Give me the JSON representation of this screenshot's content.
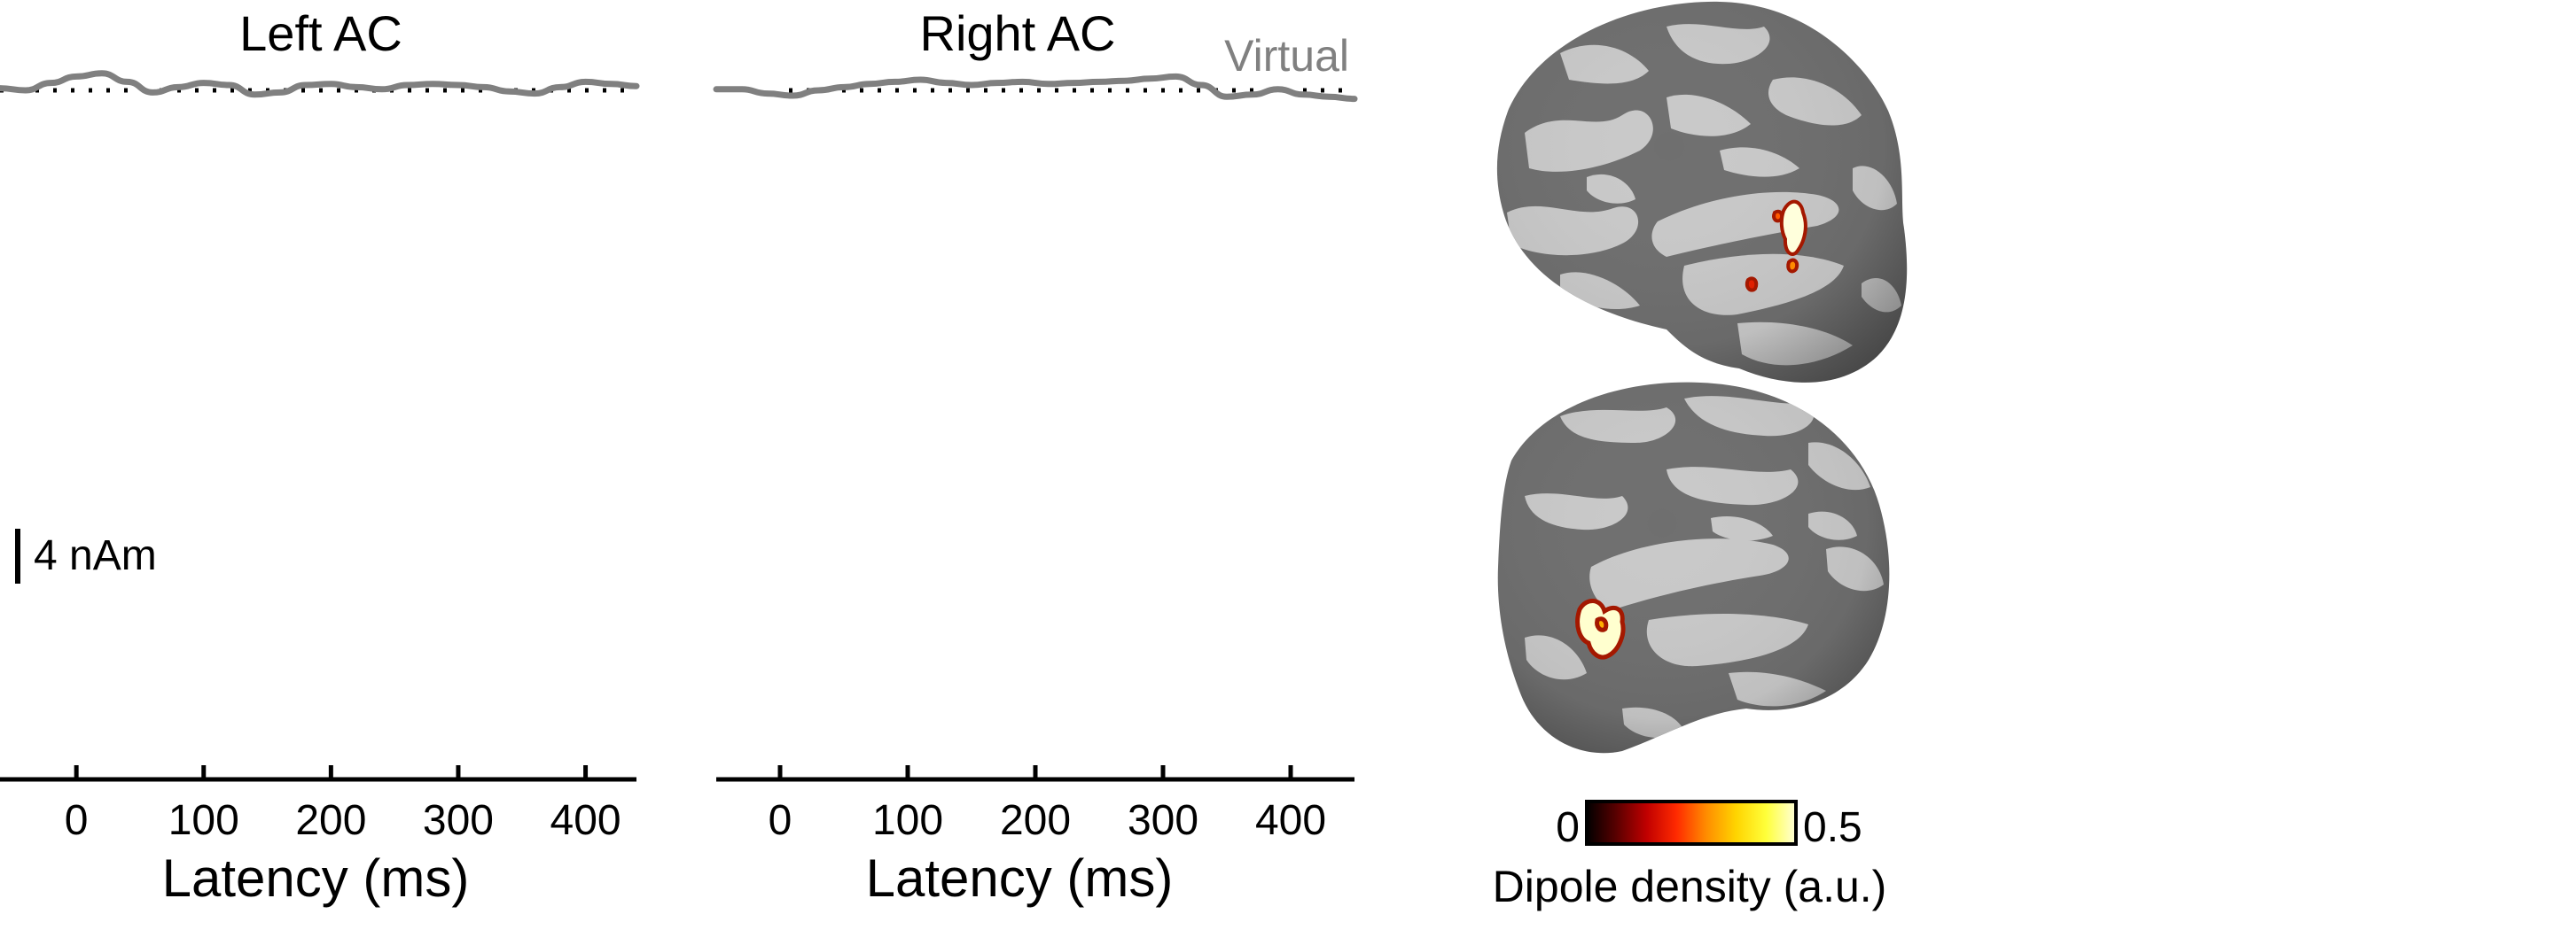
{
  "chart_data": [
    {
      "type": "line",
      "title": "Left AC",
      "xlabel": "Latency (ms)",
      "ylabel": "",
      "xlim": [
        -60,
        440
      ],
      "xticks": [
        0,
        100,
        200,
        300,
        400
      ],
      "ylim": [
        -12,
        12
      ],
      "zero_line": "dotted",
      "grid": false,
      "scale_bar": {
        "value": 4,
        "label": "4 nAm"
      },
      "series": [
        {
          "name": "",
          "color": "#808080",
          "x": [
            -60,
            -40,
            -20,
            0,
            20,
            40,
            60,
            80,
            100,
            120,
            140,
            160,
            180,
            200,
            220,
            240,
            260,
            280,
            300,
            320,
            340,
            360,
            380,
            400,
            420,
            440
          ],
          "y": [
            0.2,
            0.0,
            0.7,
            1.3,
            1.6,
            0.8,
            -0.2,
            0.3,
            0.7,
            0.5,
            -0.4,
            -0.2,
            0.5,
            0.6,
            0.3,
            0.1,
            0.5,
            0.6,
            0.5,
            0.3,
            -0.1,
            -0.3,
            0.3,
            0.8,
            0.6,
            0.4
          ]
        }
      ]
    },
    {
      "type": "line",
      "title": "Right AC",
      "xlabel": "Latency (ms)",
      "ylabel": "",
      "xlim": [
        -50,
        450
      ],
      "xticks": [
        0,
        100,
        200,
        300,
        400
      ],
      "ylim": [
        -12,
        12
      ],
      "zero_line": "dotted",
      "grid": false,
      "legend": {
        "position": "top-right",
        "entries": [
          "Virtual"
        ]
      },
      "series": [
        {
          "name": "Virtual",
          "color": "#808080",
          "x": [
            -50,
            -30,
            -10,
            10,
            30,
            50,
            70,
            90,
            110,
            130,
            150,
            170,
            190,
            210,
            230,
            250,
            270,
            290,
            310,
            330,
            350,
            370,
            390,
            410,
            430,
            450
          ],
          "y": [
            0.1,
            0.1,
            -0.3,
            -0.5,
            0.0,
            0.3,
            0.6,
            0.8,
            1.0,
            0.7,
            0.5,
            0.7,
            0.8,
            0.6,
            0.7,
            0.8,
            0.9,
            1.1,
            1.3,
            0.5,
            -0.6,
            -0.4,
            0.1,
            -0.4,
            -0.6,
            -0.8
          ]
        }
      ]
    }
  ],
  "colorbar": {
    "min_label": "0",
    "max_label": "0.5",
    "label": "Dipole density (a.u.)",
    "colormap": [
      "#000000",
      "#5a0000",
      "#c00000",
      "#ff2a00",
      "#ff8c00",
      "#ffd400",
      "#ffff3a",
      "#ffffd8"
    ]
  },
  "brains": {
    "fold_dark": "#707070",
    "fold_light": "#c8c8c8",
    "top_view": "right-hemisphere",
    "bottom_view": "left-hemisphere"
  }
}
